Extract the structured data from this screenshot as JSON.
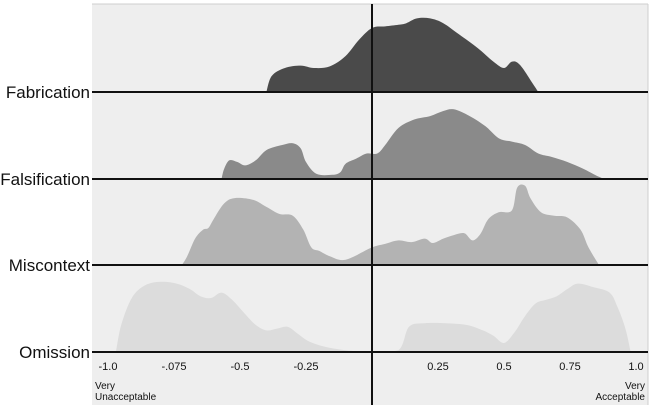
{
  "chart_data": {
    "type": "area",
    "subtype": "ridgeline",
    "title": "",
    "xlabel": "",
    "ylabel": "",
    "x_range": [
      -1.0,
      1.0
    ],
    "grid": false,
    "legend": "none",
    "background_color": "#eeeeee",
    "tick_labels": [
      "-1.0",
      "-.075",
      "-0.5",
      "-0.25",
      "0.25",
      "0.5",
      "0.75",
      "1.0"
    ],
    "end_labels": {
      "left": [
        "Very",
        "Unacceptable"
      ],
      "right": [
        "Very",
        "Acceptable"
      ]
    },
    "series": [
      {
        "name": "Fabrication",
        "color": "#4a4a4a",
        "points": [
          [
            -0.4,
            0
          ],
          [
            -0.38,
            0.2
          ],
          [
            -0.33,
            0.3
          ],
          [
            -0.27,
            0.33
          ],
          [
            -0.22,
            0.3
          ],
          [
            -0.16,
            0.32
          ],
          [
            -0.1,
            0.45
          ],
          [
            -0.05,
            0.65
          ],
          [
            0.0,
            0.8
          ],
          [
            0.05,
            0.82
          ],
          [
            0.1,
            0.84
          ],
          [
            0.13,
            0.86
          ],
          [
            0.17,
            0.92
          ],
          [
            0.22,
            0.92
          ],
          [
            0.27,
            0.86
          ],
          [
            0.33,
            0.72
          ],
          [
            0.4,
            0.55
          ],
          [
            0.46,
            0.38
          ],
          [
            0.5,
            0.3
          ],
          [
            0.53,
            0.38
          ],
          [
            0.56,
            0.34
          ],
          [
            0.61,
            0.1
          ],
          [
            0.63,
            0
          ]
        ]
      },
      {
        "name": "Falsification",
        "color": "#8a8a8a",
        "points": [
          [
            -0.57,
            0
          ],
          [
            -0.56,
            0.12
          ],
          [
            -0.54,
            0.22
          ],
          [
            -0.51,
            0.2
          ],
          [
            -0.48,
            0.16
          ],
          [
            -0.44,
            0.22
          ],
          [
            -0.4,
            0.34
          ],
          [
            -0.34,
            0.4
          ],
          [
            -0.3,
            0.42
          ],
          [
            -0.27,
            0.36
          ],
          [
            -0.25,
            0.2
          ],
          [
            -0.21,
            0.06
          ],
          [
            -0.15,
            0.05
          ],
          [
            -0.12,
            0.08
          ],
          [
            -0.1,
            0.18
          ],
          [
            -0.06,
            0.24
          ],
          [
            -0.02,
            0.3
          ],
          [
            0.02,
            0.3
          ],
          [
            0.05,
            0.4
          ],
          [
            0.1,
            0.6
          ],
          [
            0.16,
            0.7
          ],
          [
            0.22,
            0.74
          ],
          [
            0.27,
            0.8
          ],
          [
            0.31,
            0.82
          ],
          [
            0.37,
            0.74
          ],
          [
            0.43,
            0.62
          ],
          [
            0.48,
            0.48
          ],
          [
            0.53,
            0.44
          ],
          [
            0.58,
            0.4
          ],
          [
            0.63,
            0.3
          ],
          [
            0.68,
            0.26
          ],
          [
            0.74,
            0.2
          ],
          [
            0.8,
            0.12
          ],
          [
            0.85,
            0.04
          ],
          [
            0.88,
            0
          ]
        ]
      },
      {
        "name": "Miscontext",
        "color": "#b3b3b3",
        "points": [
          [
            -0.72,
            0
          ],
          [
            -0.7,
            0.1
          ],
          [
            -0.67,
            0.3
          ],
          [
            -0.64,
            0.4
          ],
          [
            -0.62,
            0.42
          ],
          [
            -0.6,
            0.52
          ],
          [
            -0.56,
            0.7
          ],
          [
            -0.52,
            0.76
          ],
          [
            -0.45,
            0.74
          ],
          [
            -0.4,
            0.66
          ],
          [
            -0.35,
            0.58
          ],
          [
            -0.3,
            0.56
          ],
          [
            -0.26,
            0.4
          ],
          [
            -0.23,
            0.2
          ],
          [
            -0.2,
            0.16
          ],
          [
            -0.16,
            0.1
          ],
          [
            -0.1,
            0.06
          ],
          [
            0.0,
            0.2
          ],
          [
            0.05,
            0.24
          ],
          [
            0.1,
            0.28
          ],
          [
            0.15,
            0.26
          ],
          [
            0.2,
            0.3
          ],
          [
            0.23,
            0.25
          ],
          [
            0.27,
            0.3
          ],
          [
            0.31,
            0.34
          ],
          [
            0.35,
            0.36
          ],
          [
            0.38,
            0.28
          ],
          [
            0.41,
            0.35
          ],
          [
            0.44,
            0.52
          ],
          [
            0.48,
            0.6
          ],
          [
            0.53,
            0.62
          ],
          [
            0.55,
            0.88
          ],
          [
            0.58,
            0.9
          ],
          [
            0.6,
            0.76
          ],
          [
            0.64,
            0.6
          ],
          [
            0.69,
            0.56
          ],
          [
            0.74,
            0.54
          ],
          [
            0.79,
            0.4
          ],
          [
            0.82,
            0.2
          ],
          [
            0.86,
            0
          ]
        ]
      },
      {
        "name": "Omission",
        "color": "#dcdcdc",
        "points": [
          [
            -0.97,
            0
          ],
          [
            -0.95,
            0.3
          ],
          [
            -0.91,
            0.6
          ],
          [
            -0.86,
            0.74
          ],
          [
            -0.8,
            0.78
          ],
          [
            -0.74,
            0.76
          ],
          [
            -0.69,
            0.7
          ],
          [
            -0.65,
            0.62
          ],
          [
            -0.61,
            0.6
          ],
          [
            -0.57,
            0.66
          ],
          [
            -0.53,
            0.58
          ],
          [
            -0.48,
            0.42
          ],
          [
            -0.44,
            0.3
          ],
          [
            -0.4,
            0.24
          ],
          [
            -0.36,
            0.26
          ],
          [
            -0.32,
            0.28
          ],
          [
            -0.28,
            0.2
          ],
          [
            -0.24,
            0.12
          ],
          [
            -0.18,
            0.06
          ],
          [
            -0.1,
            0.02
          ],
          [
            0.0,
            0
          ],
          [
            0.1,
            0.02
          ],
          [
            0.14,
            0.28
          ],
          [
            0.2,
            0.32
          ],
          [
            0.28,
            0.32
          ],
          [
            0.36,
            0.3
          ],
          [
            0.42,
            0.24
          ],
          [
            0.46,
            0.18
          ],
          [
            0.5,
            0.1
          ],
          [
            0.54,
            0.22
          ],
          [
            0.58,
            0.4
          ],
          [
            0.62,
            0.54
          ],
          [
            0.66,
            0.58
          ],
          [
            0.7,
            0.62
          ],
          [
            0.74,
            0.7
          ],
          [
            0.78,
            0.76
          ],
          [
            0.84,
            0.72
          ],
          [
            0.9,
            0.66
          ],
          [
            0.93,
            0.5
          ],
          [
            0.96,
            0.26
          ],
          [
            0.98,
            0
          ]
        ]
      }
    ]
  }
}
